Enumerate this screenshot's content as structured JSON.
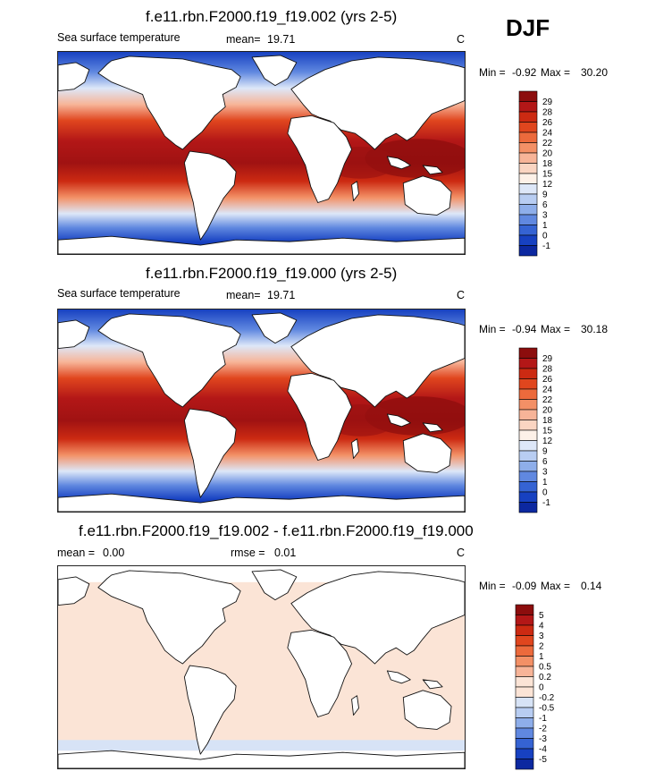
{
  "season": "DJF",
  "chart_data": [
    {
      "type": "heatmap",
      "title": "f.e11.rbn.F2000.f19_f19.002 (yrs 2-5)",
      "variable": "Sea surface temperature",
      "mean_label": "mean=",
      "mean_value": "19.71",
      "units": "C",
      "min_label": "Min =",
      "min_value": "-0.92",
      "max_label": "Max =",
      "max_value": "30.20",
      "colorbar_levels": [
        "29",
        "28",
        "26",
        "24",
        "22",
        "20",
        "18",
        "15",
        "12",
        "9",
        "6",
        "3",
        "1",
        "0",
        "-1"
      ],
      "colorbar_colors": [
        "#8c0d0d",
        "#b31717",
        "#cc2a12",
        "#e0461e",
        "#ec6a3c",
        "#f39066",
        "#f7b498",
        "#fad5c2",
        "#fdf1e8",
        "#dde7f8",
        "#b8cdf2",
        "#8eaeea",
        "#6088e0",
        "#3563d3",
        "#1741c1",
        "#0c28a0"
      ]
    },
    {
      "type": "heatmap",
      "title": "f.e11.rbn.F2000.f19_f19.000 (yrs 2-5)",
      "variable": "Sea surface temperature",
      "mean_label": "mean=",
      "mean_value": "19.71",
      "units": "C",
      "min_label": "Min =",
      "min_value": "-0.94",
      "max_label": "Max =",
      "max_value": "30.18",
      "colorbar_levels": [
        "29",
        "28",
        "26",
        "24",
        "22",
        "20",
        "18",
        "15",
        "12",
        "9",
        "6",
        "3",
        "1",
        "0",
        "-1"
      ],
      "colorbar_colors": [
        "#8c0d0d",
        "#b31717",
        "#cc2a12",
        "#e0461e",
        "#ec6a3c",
        "#f39066",
        "#f7b498",
        "#fad5c2",
        "#fdf1e8",
        "#dde7f8",
        "#b8cdf2",
        "#8eaeea",
        "#6088e0",
        "#3563d3",
        "#1741c1",
        "#0c28a0"
      ]
    },
    {
      "type": "heatmap",
      "title": "f.e11.rbn.F2000.f19_f19.002 - f.e11.rbn.F2000.f19_f19.000",
      "mean_label": "mean =",
      "mean_value": "0.00",
      "rmse_label": "rmse =",
      "rmse_value": "0.01",
      "units": "C",
      "min_label": "Min =",
      "min_value": "-0.09",
      "max_label": "Max =",
      "max_value": "0.14",
      "colorbar_levels": [
        "5",
        "4",
        "3",
        "2",
        "1",
        "0.5",
        "0.2",
        "0",
        "-0.2",
        "-0.5",
        "-1",
        "-2",
        "-3",
        "-4",
        "-5"
      ],
      "colorbar_colors": [
        "#8c0d0d",
        "#b31717",
        "#cc2a12",
        "#e0461e",
        "#ec6a3c",
        "#f39066",
        "#f7b498",
        "#fbe4d6",
        "#fbe4d6",
        "#d7e3f6",
        "#b8cdf2",
        "#8eaeea",
        "#6088e0",
        "#3563d3",
        "#1741c1",
        "#0c28a0"
      ]
    }
  ]
}
